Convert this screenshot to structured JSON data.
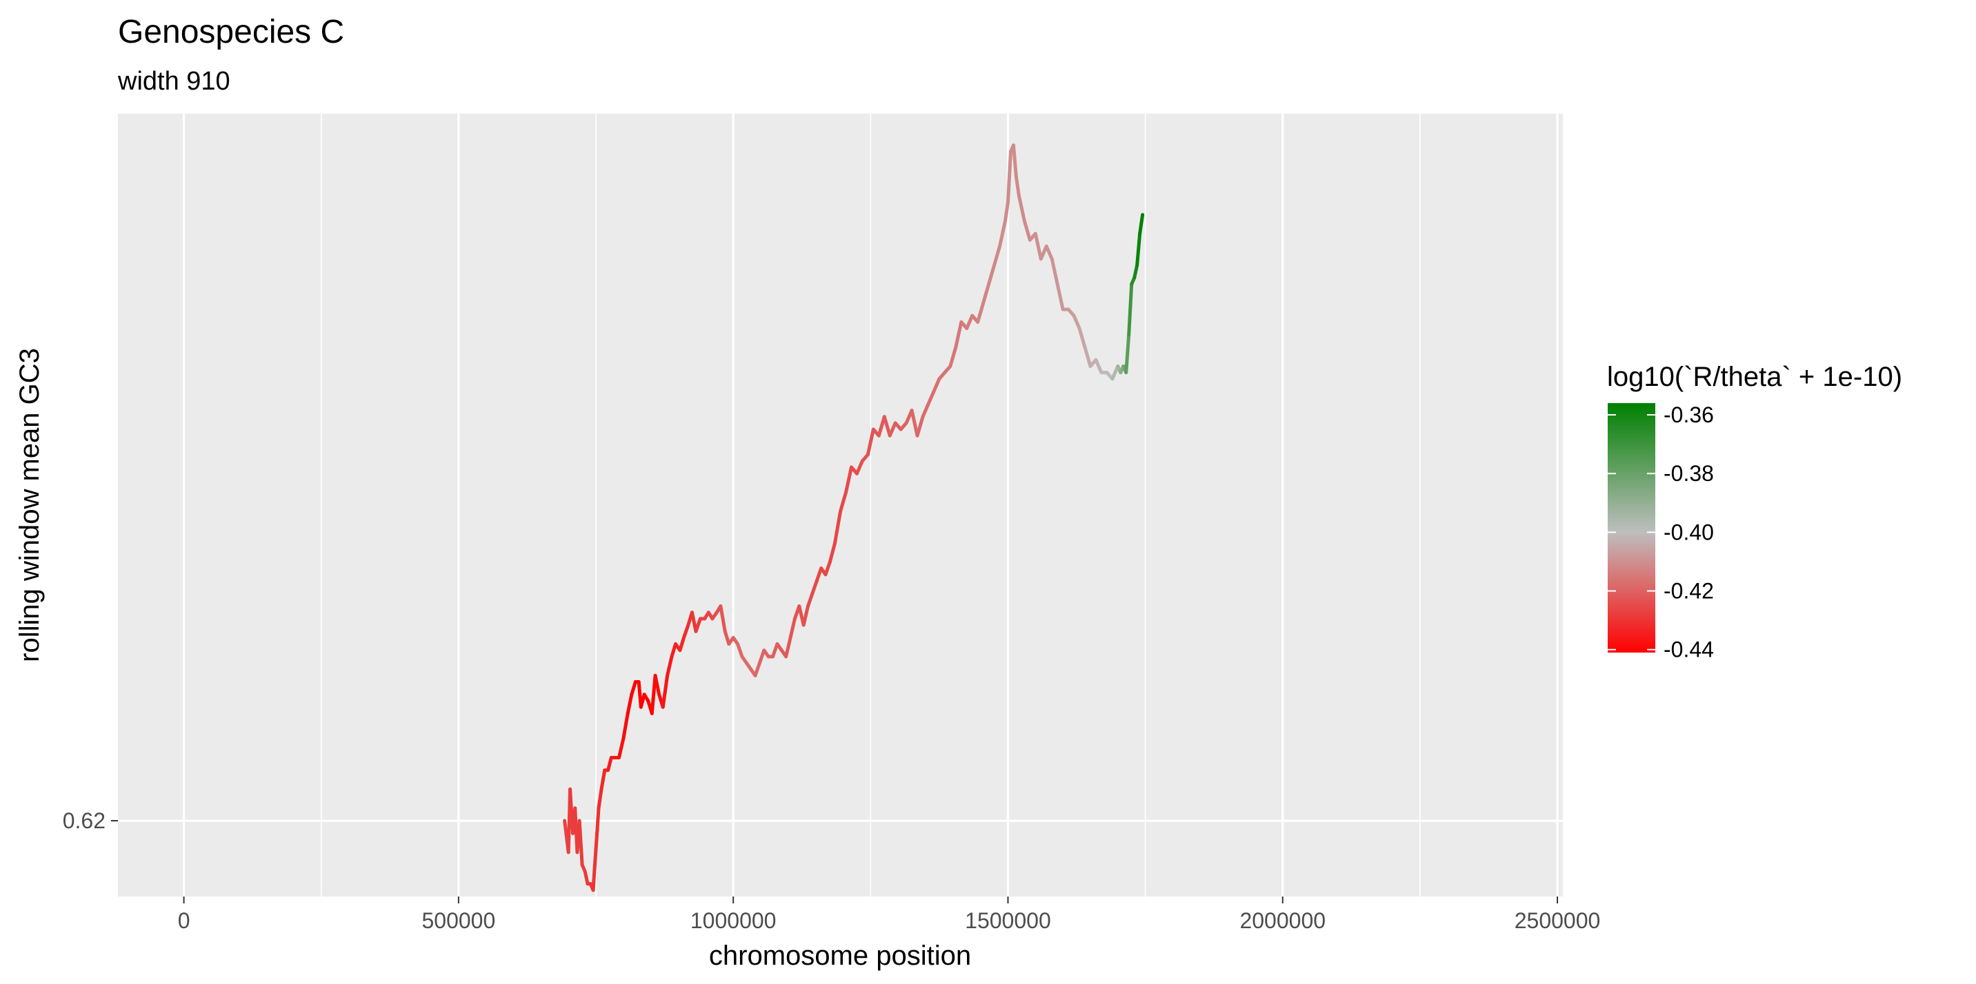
{
  "chart_data": {
    "type": "line",
    "title": "Genospecies C",
    "subtitle": "width 910",
    "xlabel": "chromosome position",
    "ylabel": "rolling window mean GC3",
    "xlim": [
      -120000,
      2510000
    ],
    "ylim": [
      0.6188,
      0.6312
    ],
    "x_ticks": [
      0,
      500000,
      1000000,
      1500000,
      2000000,
      2500000
    ],
    "x_tick_labels": [
      "0",
      "500000",
      "1000000",
      "1500000",
      "2000000",
      "2500000"
    ],
    "y_ticks": [
      0.62
    ],
    "y_tick_labels": [
      "0.62"
    ],
    "grid": true,
    "legend": {
      "title": "log10(`R/theta` + 1e-10)",
      "position": "right",
      "range": [
        -0.441,
        -0.356
      ],
      "ticks": [
        -0.36,
        -0.38,
        -0.4,
        -0.42,
        -0.44
      ],
      "tick_labels": [
        "-0.36",
        "-0.38",
        "-0.40",
        "-0.42",
        "-0.44"
      ],
      "colors": {
        "low": "#ff0000",
        "mid": "#bebebe",
        "high": "#008000"
      },
      "mid_value": -0.4
    },
    "colors": {
      "panel": "#ebebeb",
      "grid": "#ffffff"
    },
    "series": [
      {
        "x": [
          693000,
          700000,
          703000,
          708000,
          712000,
          716000,
          720000,
          725000,
          730000,
          735000,
          740000,
          745000,
          748000,
          752000,
          755000,
          760000,
          766000,
          772000,
          778000,
          785000,
          792000,
          800000,
          808000,
          815000,
          822000,
          828000,
          832000,
          838000,
          845000,
          852000,
          858000,
          865000,
          872000,
          880000,
          888000,
          895000,
          903000,
          910000,
          918000,
          925000,
          932000,
          940000,
          948000,
          955000,
          962000,
          970000,
          977000,
          985000,
          992000,
          1000000,
          1008000,
          1016000,
          1024000,
          1032000,
          1040000,
          1048000,
          1056000,
          1064000,
          1072000,
          1080000,
          1088000,
          1096000,
          1104000,
          1112000,
          1120000,
          1128000,
          1136000,
          1144000,
          1152000,
          1160000,
          1168000,
          1176000,
          1185000,
          1195000,
          1205000,
          1215000,
          1225000,
          1235000,
          1245000,
          1255000,
          1265000,
          1275000,
          1285000,
          1295000,
          1305000,
          1315000,
          1325000,
          1335000,
          1345000,
          1355000,
          1365000,
          1375000,
          1385000,
          1395000,
          1405000,
          1415000,
          1425000,
          1435000,
          1445000,
          1455000,
          1465000,
          1475000,
          1485000,
          1495000,
          1500000,
          1505000,
          1510000,
          1515000,
          1520000,
          1530000,
          1540000,
          1550000,
          1560000,
          1570000,
          1580000,
          1590000,
          1600000,
          1610000,
          1620000,
          1630000,
          1640000,
          1650000,
          1660000,
          1670000,
          1680000,
          1690000,
          1700000,
          1705000,
          1710000,
          1715000,
          1720000,
          1725000,
          1730000,
          1735000,
          1740000,
          1745000
        ],
        "y": [
          0.62,
          0.6195,
          0.6205,
          0.6198,
          0.6202,
          0.6195,
          0.62,
          0.6193,
          0.6192,
          0.619,
          0.619,
          0.6189,
          0.6193,
          0.6198,
          0.6202,
          0.6205,
          0.6208,
          0.6208,
          0.621,
          0.621,
          0.621,
          0.6213,
          0.6217,
          0.622,
          0.6222,
          0.6222,
          0.6218,
          0.622,
          0.6219,
          0.6217,
          0.6223,
          0.622,
          0.6218,
          0.6223,
          0.6226,
          0.6228,
          0.6227,
          0.6229,
          0.6231,
          0.6233,
          0.623,
          0.6232,
          0.6232,
          0.6233,
          0.6232,
          0.6233,
          0.6234,
          0.623,
          0.6228,
          0.6229,
          0.6228,
          0.6226,
          0.6225,
          0.6224,
          0.6223,
          0.6225,
          0.6227,
          0.6226,
          0.6226,
          0.6228,
          0.6227,
          0.6226,
          0.6229,
          0.6232,
          0.6234,
          0.6231,
          0.6234,
          0.6236,
          0.6238,
          0.624,
          0.6239,
          0.6241,
          0.6244,
          0.6249,
          0.6252,
          0.6256,
          0.6255,
          0.6257,
          0.6258,
          0.6262,
          0.6261,
          0.6264,
          0.6261,
          0.6263,
          0.6262,
          0.6263,
          0.6265,
          0.6261,
          0.6264,
          0.6266,
          0.6268,
          0.627,
          0.6271,
          0.6272,
          0.6275,
          0.6279,
          0.6278,
          0.628,
          0.6279,
          0.6282,
          0.6285,
          0.6288,
          0.6291,
          0.6295,
          0.6298,
          0.6306,
          0.6307,
          0.6302,
          0.6299,
          0.6295,
          0.6292,
          0.6293,
          0.6289,
          0.6291,
          0.6289,
          0.6285,
          0.6281,
          0.6281,
          0.628,
          0.6278,
          0.6275,
          0.6272,
          0.6273,
          0.6271,
          0.6271,
          0.627,
          0.6272,
          0.6271,
          0.6272,
          0.6271,
          0.6277,
          0.6285,
          0.6286,
          0.6288,
          0.6293,
          0.6296
        ],
        "color_values": [
          -0.427,
          -0.427,
          -0.428,
          -0.428,
          -0.428,
          -0.428,
          -0.428,
          -0.428,
          -0.428,
          -0.429,
          -0.429,
          -0.429,
          -0.43,
          -0.43,
          -0.431,
          -0.432,
          -0.433,
          -0.434,
          -0.435,
          -0.436,
          -0.437,
          -0.438,
          -0.439,
          -0.44,
          -0.441,
          -0.441,
          -0.441,
          -0.44,
          -0.44,
          -0.44,
          -0.439,
          -0.438,
          -0.437,
          -0.436,
          -0.435,
          -0.434,
          -0.433,
          -0.432,
          -0.431,
          -0.43,
          -0.429,
          -0.428,
          -0.427,
          -0.426,
          -0.425,
          -0.424,
          -0.423,
          -0.422,
          -0.421,
          -0.42,
          -0.419,
          -0.418,
          -0.418,
          -0.418,
          -0.418,
          -0.419,
          -0.419,
          -0.42,
          -0.42,
          -0.421,
          -0.421,
          -0.422,
          -0.422,
          -0.423,
          -0.423,
          -0.424,
          -0.424,
          -0.425,
          -0.425,
          -0.426,
          -0.426,
          -0.426,
          -0.426,
          -0.426,
          -0.425,
          -0.425,
          -0.424,
          -0.424,
          -0.423,
          -0.423,
          -0.422,
          -0.422,
          -0.421,
          -0.421,
          -0.42,
          -0.42,
          -0.419,
          -0.419,
          -0.418,
          -0.418,
          -0.417,
          -0.417,
          -0.416,
          -0.416,
          -0.415,
          -0.415,
          -0.414,
          -0.414,
          -0.413,
          -0.413,
          -0.412,
          -0.412,
          -0.411,
          -0.411,
          -0.411,
          -0.411,
          -0.411,
          -0.411,
          -0.411,
          -0.411,
          -0.411,
          -0.41,
          -0.41,
          -0.41,
          -0.409,
          -0.409,
          -0.408,
          -0.408,
          -0.407,
          -0.406,
          -0.405,
          -0.404,
          -0.403,
          -0.402,
          -0.4,
          -0.398,
          -0.395,
          -0.39,
          -0.385,
          -0.38,
          -0.374,
          -0.368,
          -0.363,
          -0.359,
          -0.357,
          -0.356
        ]
      }
    ]
  }
}
